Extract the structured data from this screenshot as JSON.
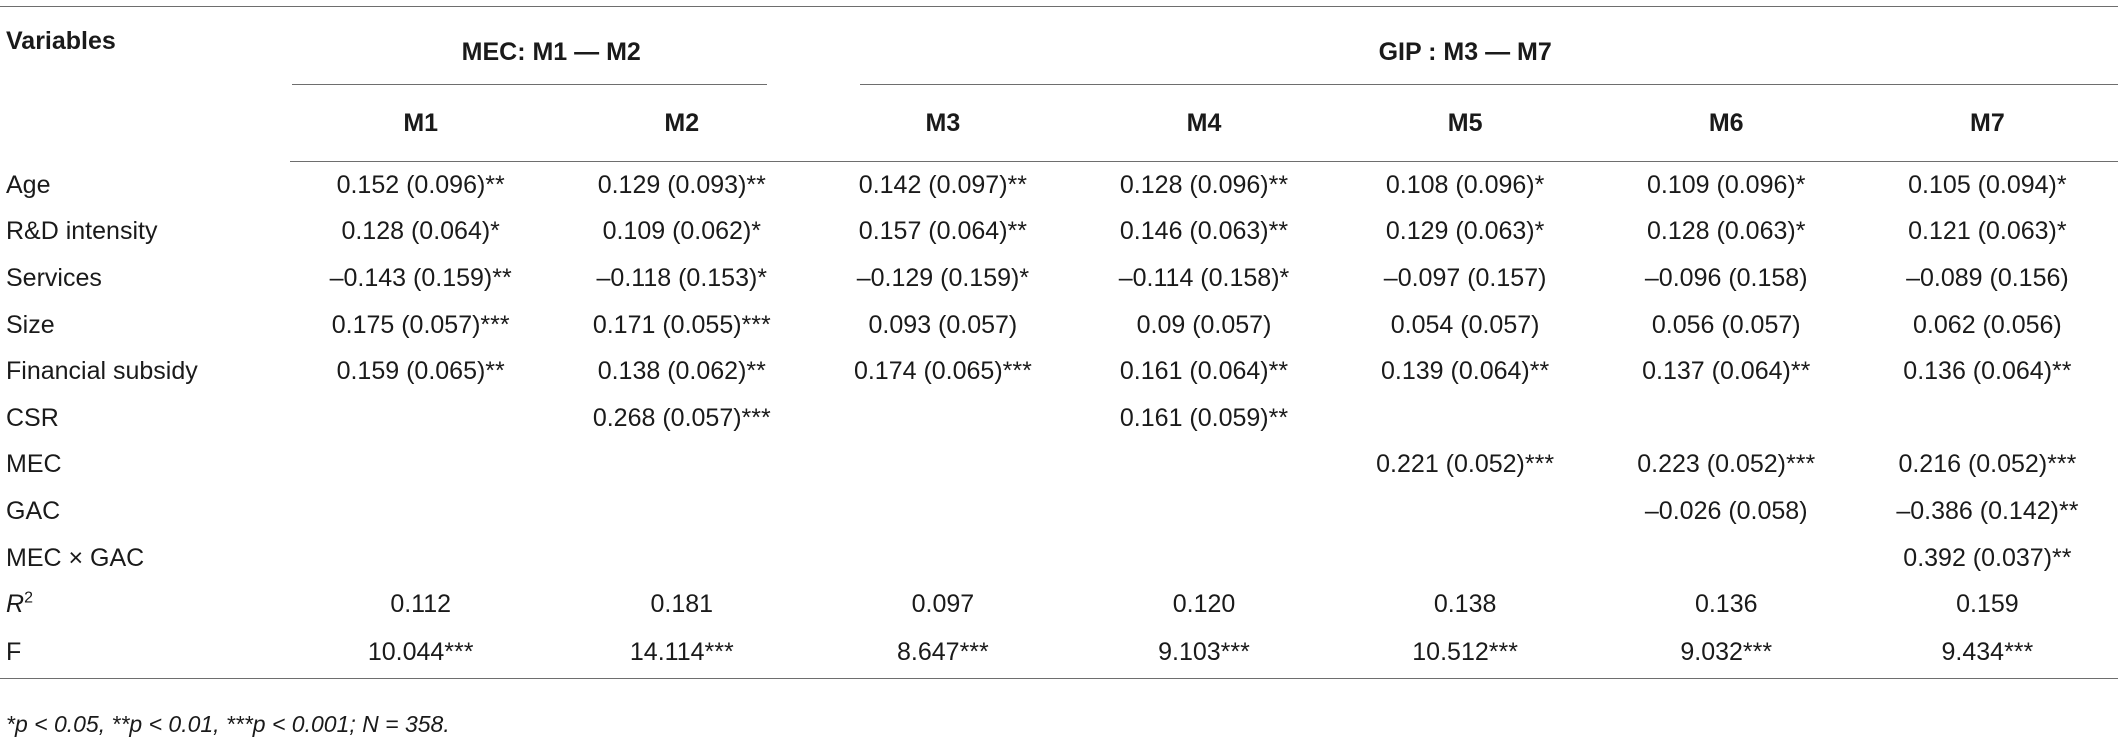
{
  "table": {
    "variables_label": "Variables",
    "group_mec": "MEC: M1 — M2",
    "group_gip": "GIP : M3 — M7",
    "models": [
      "M1",
      "M2",
      "M3",
      "M4",
      "M5",
      "M6",
      "M7"
    ],
    "rows": [
      {
        "label": "Age",
        "cells": [
          "0.152 (0.096)**",
          "0.129 (0.093)**",
          "0.142 (0.097)**",
          "0.128 (0.096)**",
          "0.108 (0.096)*",
          "0.109 (0.096)*",
          "0.105 (0.094)*"
        ]
      },
      {
        "label": "R&D intensity",
        "cells": [
          "0.128 (0.064)*",
          "0.109 (0.062)*",
          "0.157 (0.064)**",
          "0.146 (0.063)**",
          "0.129 (0.063)*",
          "0.128 (0.063)*",
          "0.121 (0.063)*"
        ]
      },
      {
        "label": "Services",
        "cells": [
          "–0.143 (0.159)**",
          "–0.118 (0.153)*",
          "–0.129 (0.159)*",
          "–0.114 (0.158)*",
          "–0.097 (0.157)",
          "–0.096 (0.158)",
          "–0.089 (0.156)"
        ]
      },
      {
        "label": "Size",
        "cells": [
          "0.175 (0.057)***",
          "0.171 (0.055)***",
          "0.093 (0.057)",
          "0.09 (0.057)",
          "0.054 (0.057)",
          "0.056 (0.057)",
          "0.062 (0.056)"
        ]
      },
      {
        "label": "Financial subsidy",
        "cells": [
          "0.159 (0.065)**",
          "0.138 (0.062)**",
          "0.174 (0.065)***",
          "0.161 (0.064)**",
          "0.139 (0.064)**",
          "0.137 (0.064)**",
          "0.136 (0.064)**"
        ]
      },
      {
        "label": "CSR",
        "cells": [
          "",
          "0.268 (0.057)***",
          "",
          "0.161 (0.059)**",
          "",
          "",
          ""
        ]
      },
      {
        "label": "MEC",
        "cells": [
          "",
          "",
          "",
          "",
          "0.221 (0.052)***",
          "0.223 (0.052)***",
          "0.216 (0.052)***"
        ]
      },
      {
        "label": "GAC",
        "cells": [
          "",
          "",
          "",
          "",
          "",
          "–0.026 (0.058)",
          "–0.386 (0.142)**"
        ]
      },
      {
        "label": "MEC × GAC",
        "cells": [
          "",
          "",
          "",
          "",
          "",
          "",
          "0.392 (0.037)**"
        ]
      },
      {
        "label": "F",
        "cells": [
          "10.044***",
          "14.114***",
          "8.647***",
          "9.103***",
          "10.512***",
          "9.032***",
          "9.434***"
        ]
      }
    ],
    "r2_row": {
      "label_base": "R",
      "label_sup": "2",
      "cells": [
        "0.112",
        "0.181",
        "0.097",
        "0.120",
        "0.138",
        "0.136",
        "0.159"
      ]
    }
  },
  "footnote": "*p < 0.05, **p < 0.01, ***p < 0.001; N = 358."
}
